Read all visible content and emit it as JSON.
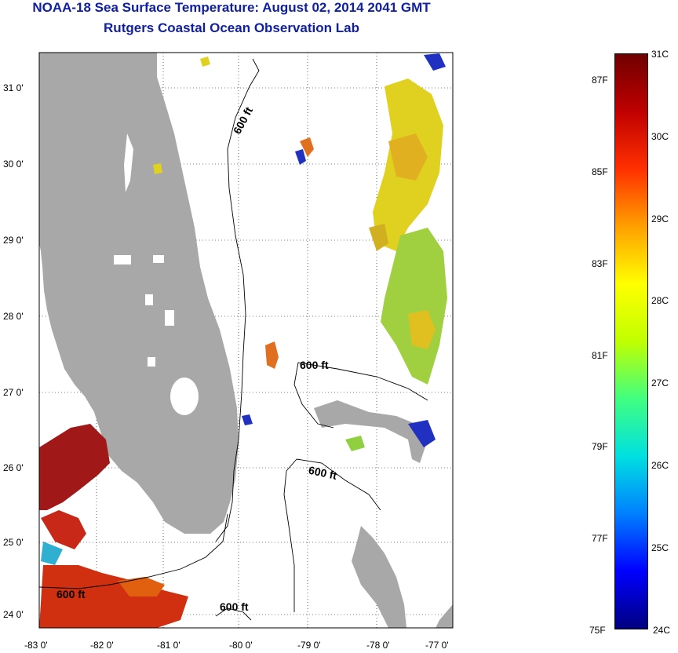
{
  "header": {
    "title": "NOAA-18 Sea Surface Temperature:  August 02, 2014 2041 GMT",
    "subtitle": "Rutgers Coastal Ocean Observation Lab"
  },
  "map": {
    "lon_ticks": [
      "-83 0'",
      "-82 0'",
      "-81 0'",
      "-80 0'",
      "-79 0'",
      "-78 0'",
      "-77 0'"
    ],
    "lat_ticks": [
      "31 0'",
      "30 0'",
      "29 0'",
      "28 0'",
      "27 0'",
      "26 0'",
      "25 0'",
      "24 0'"
    ],
    "lon_range": [
      -83.0,
      -76.9
    ],
    "lat_range": [
      23.8,
      31.45
    ],
    "contour_label": "600 ft",
    "colors": {
      "land": "#a8a8a8",
      "warm": "#a01818",
      "hot": "#d03010",
      "yellow": "#e0d020",
      "green": "#90d040",
      "blue": "#2030c0"
    }
  },
  "colorbar": {
    "celsius_labels": [
      "31C",
      "30C",
      "29C",
      "28C",
      "27C",
      "26C",
      "25C",
      "24C"
    ],
    "fahrenheit_labels": [
      "87F",
      "85F",
      "83F",
      "81F",
      "79F",
      "77F",
      "75F"
    ],
    "range_c": [
      24,
      31
    ],
    "stops": [
      "#000080",
      "#0000ff",
      "#0080ff",
      "#00e0e0",
      "#40ff80",
      "#c0ff00",
      "#ffff00",
      "#ffa000",
      "#ff3000",
      "#c00000",
      "#700000"
    ]
  }
}
